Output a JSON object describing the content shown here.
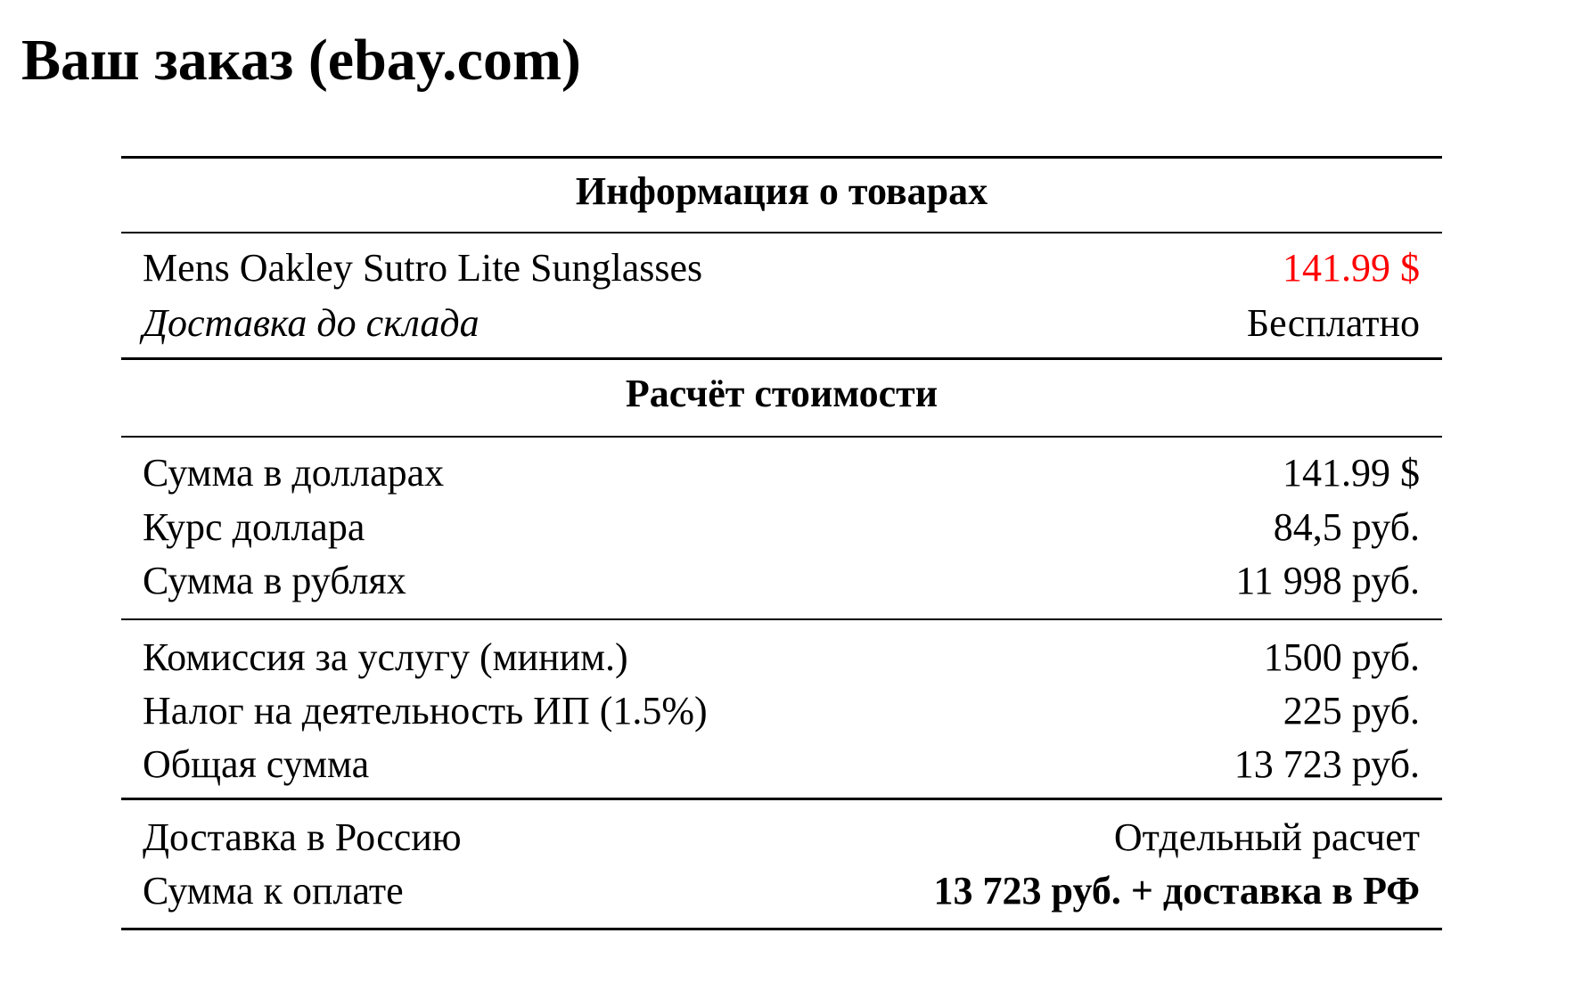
{
  "title": "Ваш заказ (ebay.com)",
  "accent_color": "#ff0000",
  "items_section": {
    "heading": "Информация о товарах",
    "product": {
      "label": "Mens Oakley Sutro Lite Sunglasses",
      "value": "141.99 $"
    },
    "warehouse_delivery": {
      "label": "Доставка до склада",
      "value": "Бесплатно"
    }
  },
  "calc_section": {
    "heading": "Расчёт стоимости",
    "rows": [
      {
        "label": "Сумма в долларах",
        "value": "141.99 $"
      },
      {
        "label": "Курс доллара",
        "value": "84,5 руб."
      },
      {
        "label": "Сумма в рублях",
        "value": "11 998 руб."
      },
      {
        "label": "Комиссия за услугу (миним.)",
        "value": "1500 руб."
      },
      {
        "label": "Налог на деятельность ИП (1.5%)",
        "value": "225 руб."
      },
      {
        "label": "Общая сумма",
        "value": "13 723 руб."
      }
    ]
  },
  "final": {
    "delivery": {
      "label": "Доставка в Россию",
      "value": "Отдельный расчет"
    },
    "total": {
      "label": "Сумма к оплате",
      "value": "13 723 руб. + доставка в РФ"
    }
  }
}
